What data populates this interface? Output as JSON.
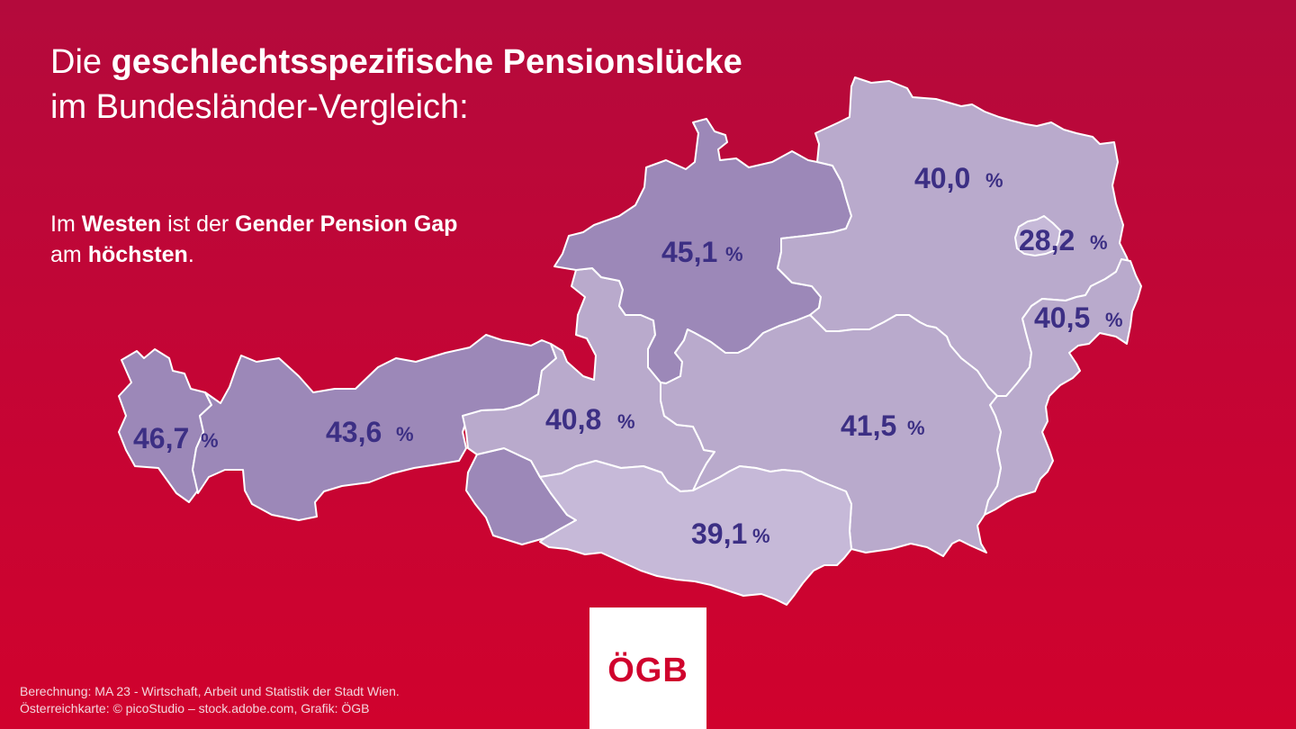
{
  "title": {
    "prefix": "Die ",
    "bold": "geschlechtsspezifische Pensionslücke",
    "line2": "im Bundesländer-Vergleich:"
  },
  "subtitle": {
    "part1": "Im ",
    "bold1": "Westen",
    "part2": " ist der ",
    "bold2": "Gender Pension Gap",
    "line2_part1": "am ",
    "line2_bold": "höchsten",
    "line2_end": "."
  },
  "map": {
    "colors": {
      "high": "#9c88b8",
      "medium": "#b9aacc",
      "low": "#c6b9d8",
      "value_text": "#3c2f84"
    },
    "regions": [
      {
        "id": "vorarlberg",
        "value": "46,7",
        "shade": "high"
      },
      {
        "id": "tirol",
        "value": "43,6",
        "shade": "high"
      },
      {
        "id": "salzburg",
        "value": "40,8",
        "shade": "medium"
      },
      {
        "id": "oberoesterreich",
        "value": "45,1",
        "shade": "high"
      },
      {
        "id": "niederoesterreich",
        "value": "40,0",
        "shade": "medium"
      },
      {
        "id": "wien",
        "value": "28,2",
        "shade": "low"
      },
      {
        "id": "burgenland",
        "value": "40,5",
        "shade": "medium"
      },
      {
        "id": "steiermark",
        "value": "41,5",
        "shade": "medium"
      },
      {
        "id": "kaernten",
        "value": "39,1",
        "shade": "low"
      }
    ],
    "percent_sign": "%"
  },
  "logo": {
    "text": "ÖGB"
  },
  "credits": {
    "line1": "Berechnung: MA 23 - Wirtschaft, Arbeit und Statistik der Stadt Wien.",
    "line2": "Österreichkarte: © picoStudio – stock.adobe.com, Grafik: ÖGB"
  }
}
